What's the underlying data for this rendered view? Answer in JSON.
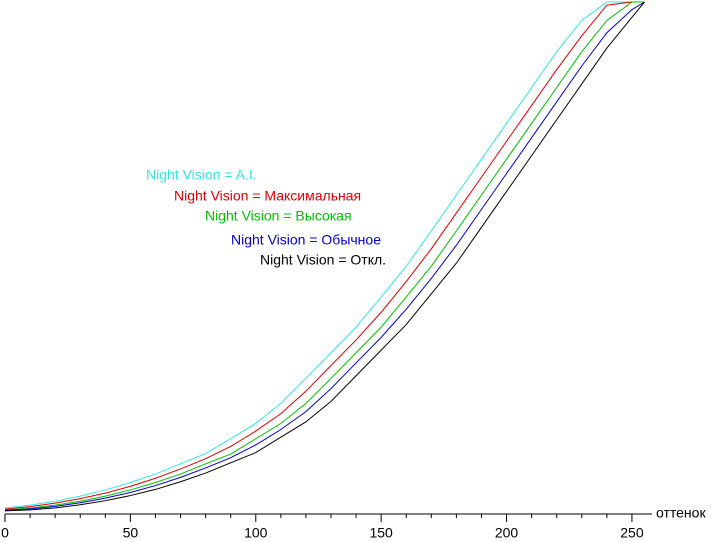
{
  "chart_data": {
    "type": "line",
    "x_label": "оттенок",
    "x": [
      0,
      10,
      20,
      30,
      40,
      50,
      60,
      70,
      80,
      90,
      100,
      110,
      120,
      130,
      140,
      150,
      160,
      170,
      180,
      190,
      200,
      210,
      220,
      230,
      240,
      250,
      255
    ],
    "series": [
      {
        "name": "Night Vision = A.I.",
        "color": "#33e6e6",
        "values": [
          1.16,
          1.74,
          2.5,
          3.5,
          4.7,
          6.15,
          7.8,
          9.8,
          11.8,
          14.7,
          17.7,
          21.6,
          26.5,
          31.5,
          36.5,
          42.4,
          48.4,
          55.3,
          62.3,
          69.3,
          76.3,
          83.3,
          90.3,
          96.4,
          100,
          100,
          100
        ]
      },
      {
        "name": "Night Vision = Максимальная",
        "color": "#e00000",
        "values": [
          0.96,
          1.44,
          2.12,
          3.0,
          4.08,
          5.4,
          6.98,
          8.8,
          10.8,
          13.2,
          16.2,
          19.6,
          24,
          29,
          34,
          39.4,
          45.4,
          51.8,
          58.8,
          65.8,
          72.8,
          79.8,
          86.8,
          93.4,
          99.4,
          100,
          100
        ]
      },
      {
        "name": "Night Vision = Высокая",
        "color": "#00c000",
        "values": [
          0.78,
          1.16,
          1.74,
          2.5,
          3.5,
          4.7,
          6.15,
          7.8,
          9.8,
          11.7,
          14.7,
          17.7,
          21.6,
          26.5,
          31.5,
          36.5,
          42.4,
          48.4,
          55.3,
          62.3,
          69.3,
          76.3,
          83.3,
          90.3,
          96.4,
          100,
          100
        ]
      },
      {
        "name": "Night Vision = Обычное",
        "color": "#0000d0",
        "values": [
          0.7,
          1.0,
          1.5,
          2.2,
          3.1,
          4.2,
          5.55,
          7.15,
          9,
          11,
          13.5,
          16.5,
          20,
          24.5,
          29.5,
          34.5,
          40,
          46,
          52.5,
          59.5,
          66.5,
          73.5,
          80.5,
          87.5,
          94,
          98.5,
          100
        ]
      },
      {
        "name": "Night Vision = Откл.",
        "color": "#000000",
        "values": [
          0.6,
          0.8,
          1.2,
          1.8,
          2.6,
          3.6,
          4.8,
          6.3,
          8,
          10,
          12,
          15,
          18,
          22,
          27,
          32,
          37,
          43,
          49,
          56,
          63,
          70,
          77,
          84,
          91,
          97,
          100
        ]
      }
    ],
    "xlim": [
      0,
      258
    ],
    "ylim": [
      0,
      100
    ],
    "xticks": [
      0,
      50,
      100,
      150,
      200,
      250
    ],
    "xminorticks": [
      10,
      20,
      30,
      40,
      60,
      70,
      80,
      90,
      110,
      120,
      130,
      140,
      160,
      170,
      180,
      190,
      210,
      220,
      230,
      240
    ]
  }
}
